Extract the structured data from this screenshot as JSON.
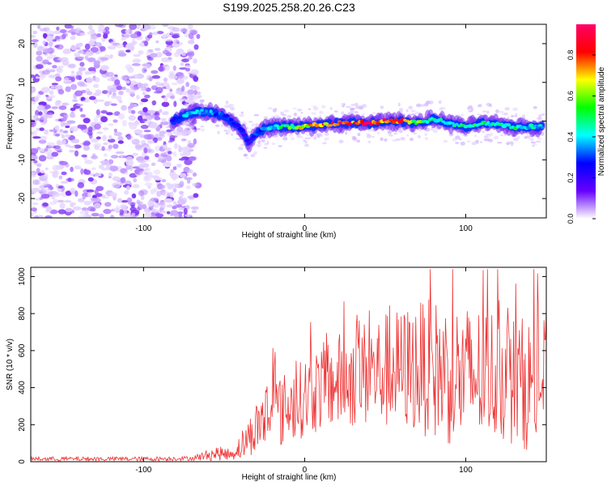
{
  "title": "S199.2025.258.20.26.C23",
  "chart_data": [
    {
      "type": "heatmap",
      "name": "spectrogram",
      "xlabel": "Height of straight line (km)",
      "ylabel": "Frequency (Hz)",
      "xlim": [
        -170,
        150
      ],
      "ylim": [
        -25,
        25
      ],
      "xticks": [
        -100,
        0,
        100
      ],
      "xtick_labels": [
        "-100",
        "0",
        "100"
      ],
      "yticks": [
        -20,
        -10,
        0,
        10,
        20
      ],
      "ytick_labels": [
        "-20",
        "-10",
        "0",
        "10",
        "20"
      ],
      "grid": false,
      "noise_region_x": [
        -170,
        -72
      ],
      "ridge": {
        "description": "dominant spectral ridge (frequency vs height)",
        "x": [
          -82,
          -75,
          -65,
          -55,
          -48,
          -42,
          -38,
          -35,
          -30,
          -25,
          -20,
          -10,
          0,
          10,
          20,
          30,
          40,
          50,
          60,
          70,
          80,
          90,
          100,
          110,
          120,
          130,
          140,
          148
        ],
        "y": [
          0,
          1.5,
          2.5,
          2,
          1,
          -1,
          -3,
          -6,
          -3,
          -2,
          -1.5,
          -1.5,
          -1.5,
          -1,
          -0.5,
          -0.5,
          -0.5,
          0,
          0,
          -0.5,
          0.5,
          -0.5,
          -1.5,
          -0.5,
          -1,
          -1.5,
          -1.5,
          -1.5
        ],
        "amplitude": [
          0.25,
          0.4,
          0.45,
          0.35,
          0.3,
          0.28,
          0.25,
          0.2,
          0.3,
          0.38,
          0.45,
          0.55,
          0.7,
          0.8,
          0.88,
          0.85,
          0.9,
          0.85,
          0.82,
          0.6,
          0.5,
          0.45,
          0.5,
          0.55,
          0.45,
          0.5,
          0.45,
          0.4
        ]
      },
      "colorbar": {
        "label": "Normalized spectral amplitude",
        "range": [
          0,
          0.95
        ],
        "ticks": [
          0.0,
          0.2,
          0.4,
          0.6,
          0.8
        ],
        "tick_labels": [
          "0.0",
          "0.2",
          "0.4",
          "0.6",
          "0.8"
        ],
        "colors": [
          "#ffffff",
          "#6600ff",
          "#0000ff",
          "#00ffff",
          "#00ff00",
          "#ffff00",
          "#ff0000",
          "#ff0066"
        ]
      }
    },
    {
      "type": "line",
      "name": "snr",
      "xlabel": "Height of straight line (km)",
      "ylabel": "SNR (10 * v/v)",
      "xlim": [
        -170,
        150
      ],
      "ylim": [
        0,
        1050
      ],
      "xticks": [
        -100,
        0,
        100
      ],
      "xtick_labels": [
        "-100",
        "0",
        "100"
      ],
      "yticks": [
        0,
        200,
        400,
        600,
        800,
        1000
      ],
      "ytick_labels": [
        "0",
        "200",
        "400",
        "600",
        "800",
        "1000"
      ],
      "color": "#ee3333",
      "envelope": {
        "x": [
          -170,
          -100,
          -70,
          -55,
          -45,
          -38,
          -32,
          -25,
          -20,
          -15,
          -10,
          -5,
          0,
          10,
          20,
          30,
          40,
          50,
          60,
          70,
          80,
          90,
          100,
          110,
          120,
          130,
          140,
          150
        ],
        "mean": [
          15,
          15,
          18,
          45,
          40,
          100,
          160,
          250,
          280,
          270,
          300,
          320,
          350,
          400,
          430,
          460,
          480,
          490,
          500,
          510,
          500,
          480,
          450,
          470,
          480,
          430,
          420,
          440
        ],
        "spread": [
          12,
          12,
          12,
          40,
          30,
          90,
          120,
          200,
          230,
          200,
          200,
          200,
          220,
          240,
          260,
          280,
          300,
          320,
          330,
          360,
          380,
          400,
          400,
          380,
          360,
          360,
          360,
          380
        ]
      },
      "peak_max": 1040
    }
  ]
}
